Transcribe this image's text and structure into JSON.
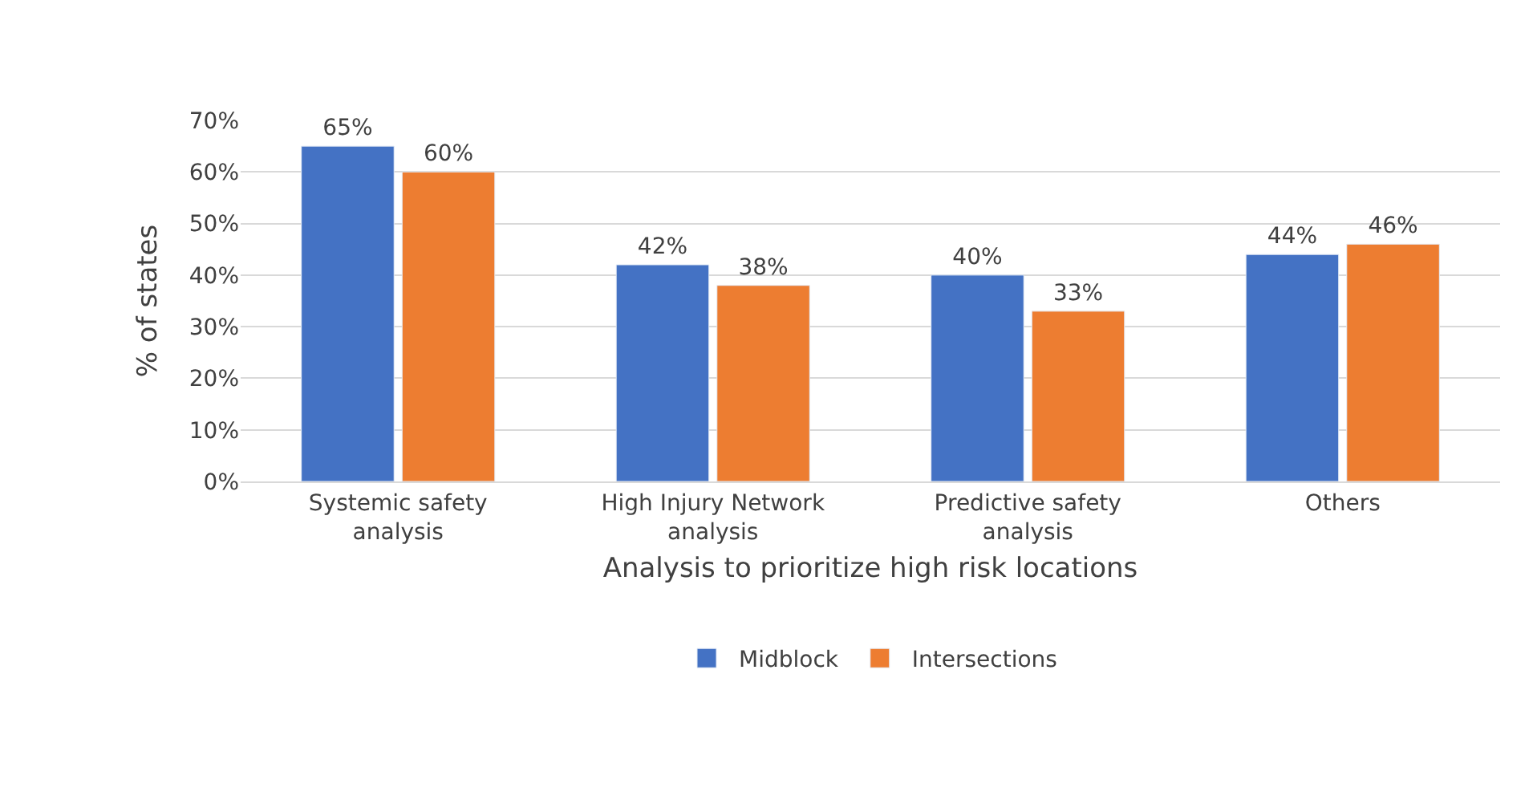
{
  "chart_data": {
    "type": "bar",
    "xlabel": "Analysis to prioritize high risk locations",
    "ylabel": "% of states",
    "categories": [
      "Systemic safety\nanalysis",
      "High Injury Network\nanalysis",
      "Predictive safety\nanalysis",
      "Others"
    ],
    "series": [
      {
        "name": "Midblock",
        "color": "#4472c4",
        "values": [
          65,
          42,
          40,
          44
        ],
        "value_labels": [
          "65%",
          "42%",
          "40%",
          "44%"
        ]
      },
      {
        "name": "Intersections",
        "color": "#ed7d31",
        "values": [
          60,
          38,
          33,
          46
        ],
        "value_labels": [
          "60%",
          "38%",
          "33%",
          "46%"
        ]
      }
    ],
    "ylim": [
      0,
      70
    ],
    "yticks": [
      {
        "value": 0,
        "label": "0%"
      },
      {
        "value": 10,
        "label": "10%"
      },
      {
        "value": 20,
        "label": "20%"
      },
      {
        "value": 30,
        "label": "30%"
      },
      {
        "value": 40,
        "label": "40%"
      },
      {
        "value": 50,
        "label": "50%"
      },
      {
        "value": 60,
        "label": "60%"
      },
      {
        "value": 70,
        "label": "70%"
      }
    ],
    "grid": "y",
    "legend": "bottom"
  }
}
